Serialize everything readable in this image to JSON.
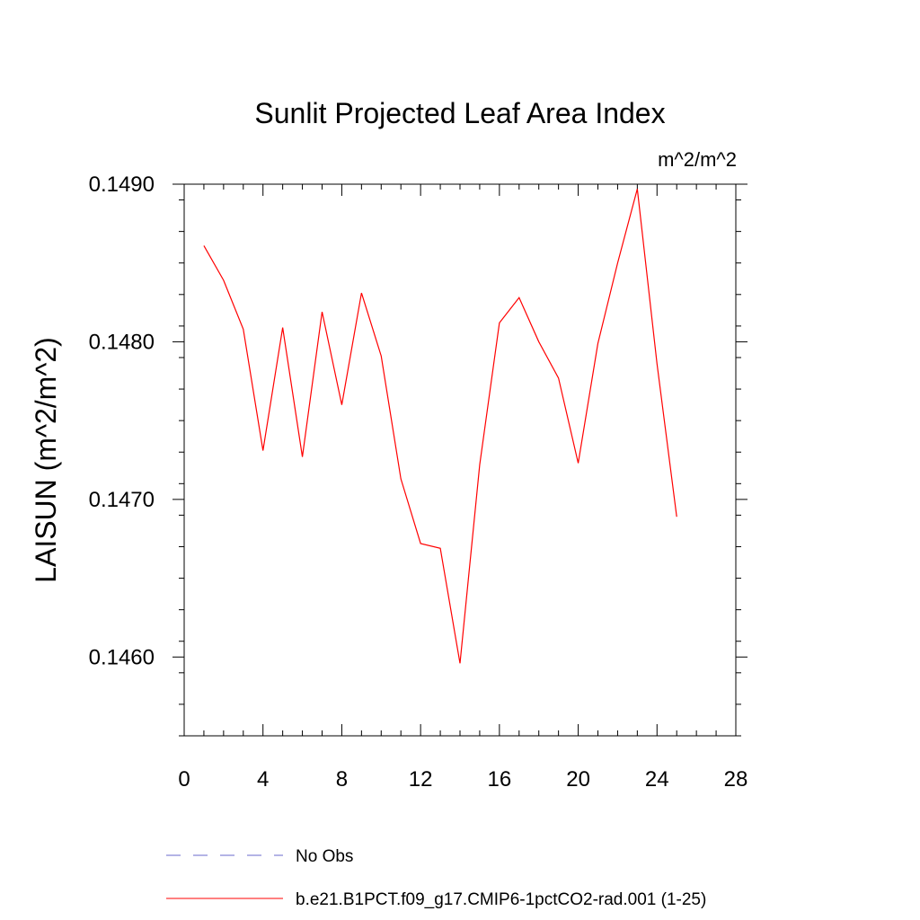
{
  "chart_data": {
    "type": "line",
    "title": "Sunlit Projected Leaf Area Index",
    "units_label": "m^2/m^2",
    "ylabel": "LAISUN  (m^2/m^2)",
    "xlabel": "",
    "xlim": [
      0,
      28
    ],
    "ylim": [
      0.1455,
      0.149
    ],
    "xticks": [
      "0",
      "4",
      "8",
      "12",
      "16",
      "20",
      "24",
      "28"
    ],
    "yticks": [
      "0.1460",
      "0.1470",
      "0.1480",
      "0.1490"
    ],
    "grid": false,
    "series": [
      {
        "name": "b.e21.B1PCT.f09_g17.CMIP6-1pctCO2-rad.001 (1-25)",
        "color": "#ff0000",
        "style": "solid",
        "x": [
          1,
          2,
          3,
          4,
          5,
          6,
          7,
          8,
          9,
          10,
          11,
          12,
          13,
          14,
          15,
          16,
          17,
          18,
          19,
          20,
          21,
          22,
          23,
          24,
          25
        ],
        "y": [
          0.14861,
          0.14839,
          0.14808,
          0.14731,
          0.14809,
          0.14727,
          0.14819,
          0.1476,
          0.14831,
          0.14791,
          0.14713,
          0.14672,
          0.14669,
          0.14596,
          0.14722,
          0.14812,
          0.14828,
          0.148,
          0.14777,
          0.14723,
          0.14799,
          0.1485,
          0.14897,
          0.14786,
          0.14689
        ]
      }
    ],
    "legend": {
      "placement": "bottom",
      "entries": [
        {
          "label": "No Obs",
          "color": "#6a6acd",
          "style": "dashed"
        },
        {
          "label": "b.e21.B1PCT.f09_g17.CMIP6-1pctCO2-rad.001 (1-25)",
          "color": "#ff0000",
          "style": "solid"
        }
      ]
    }
  }
}
